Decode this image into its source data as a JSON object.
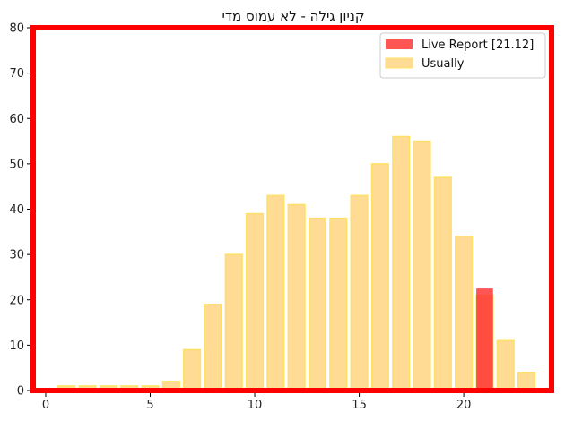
{
  "chart_data": {
    "type": "bar",
    "title": "קניון גילה - לא עמוס מדי",
    "xlabel": "",
    "ylabel": "",
    "xlim": [
      -0.6,
      24.2
    ],
    "ylim": [
      0,
      80
    ],
    "xticks": [
      0,
      5,
      10,
      15,
      20
    ],
    "yticks": [
      0,
      10,
      20,
      30,
      40,
      50,
      60,
      70,
      80
    ],
    "grid": false,
    "legend_position": "top-right",
    "frame_color": "#ff0000",
    "series": [
      {
        "name": "Live Report [21.12]",
        "color": "#ff2a2a",
        "opacity": 0.8,
        "x": [
          21
        ],
        "values": [
          22.5
        ]
      },
      {
        "name": "Usually",
        "color": "#ffc75a",
        "edge_color": "#ffe066",
        "opacity": 0.65,
        "x": [
          0,
          1,
          2,
          3,
          4,
          5,
          6,
          7,
          8,
          9,
          10,
          11,
          12,
          13,
          14,
          15,
          16,
          17,
          18,
          19,
          20,
          21,
          22,
          23
        ],
        "values": [
          0,
          1,
          1,
          1,
          1,
          1,
          2,
          9,
          19,
          30,
          39,
          43,
          41,
          38,
          38,
          43,
          50,
          56,
          55,
          47,
          34,
          21,
          11,
          4
        ]
      }
    ]
  }
}
